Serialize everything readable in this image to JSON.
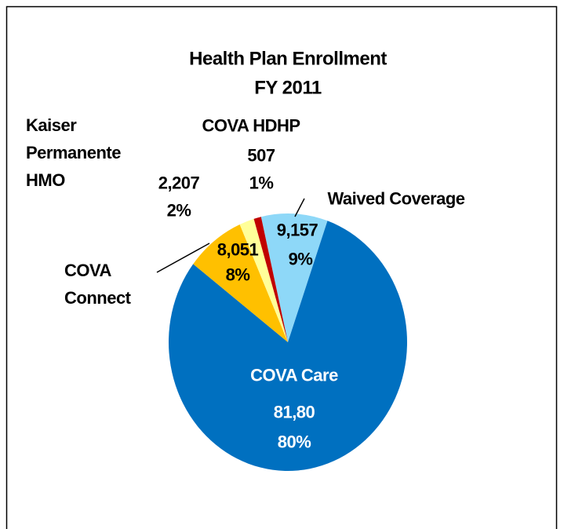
{
  "chart_data": {
    "type": "pie",
    "title": "Health Plan Enrollment",
    "subtitle": "FY 2011",
    "categories": [
      "Waived Coverage",
      "COVA Care",
      "COVA Connect",
      "Kaiser Permanente HMO",
      "COVA HDHP"
    ],
    "values": [
      9,
      80,
      8,
      2,
      1
    ],
    "value_labels": [
      "9%",
      "80%",
      "8%",
      "2%",
      "1%"
    ],
    "count_labels": [
      "9,157",
      "81,80",
      "8,051",
      "2,207",
      "507"
    ],
    "colors": [
      "#8ed8f8",
      "#0070c0",
      "#ffc000",
      "#ffff99",
      "#c00000"
    ]
  }
}
